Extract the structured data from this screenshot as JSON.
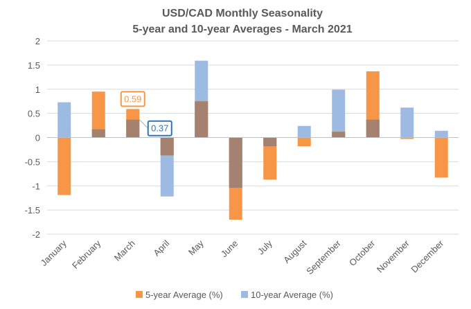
{
  "chart_data": {
    "type": "bar",
    "title": "USD/CAD Monthly Seasonality",
    "subtitle": "5-year and 10-year Averages - March 2021",
    "categories": [
      "January",
      "February",
      "March",
      "April",
      "May",
      "June",
      "July",
      "August",
      "September",
      "October",
      "November",
      "December"
    ],
    "series": [
      {
        "name": "5-year Average (%)",
        "color": "#F79646",
        "values": [
          -1.19,
          0.95,
          0.59,
          -0.37,
          0.75,
          -1.7,
          -0.87,
          -0.18,
          0.12,
          1.37,
          -0.03,
          -0.83
        ]
      },
      {
        "name": "10-year Average (%)",
        "color": "#9DBBE2",
        "values": [
          0.73,
          0.17,
          0.37,
          -1.22,
          1.59,
          -1.04,
          -0.18,
          0.24,
          0.99,
          0.37,
          0.62,
          0.14
        ]
      }
    ],
    "overlap_color": "#A5826F",
    "ylim": [
      -2,
      2
    ],
    "yticks": [
      "2",
      "1.5",
      "1",
      "0.5",
      "0",
      "-0.5",
      "-1",
      "-1.5",
      "-2"
    ],
    "ytick_values": [
      2,
      1.5,
      1,
      0.5,
      0,
      -0.5,
      -1,
      -1.5,
      -2
    ],
    "grid": true,
    "legend_position": "bottom",
    "annotations": [
      {
        "category": "March",
        "series": "5-year Average (%)",
        "text": "0.59",
        "color": "#F79646"
      },
      {
        "category": "March",
        "series": "10-year Average (%)",
        "text": "0.37",
        "color": "#2E75B6"
      }
    ]
  }
}
